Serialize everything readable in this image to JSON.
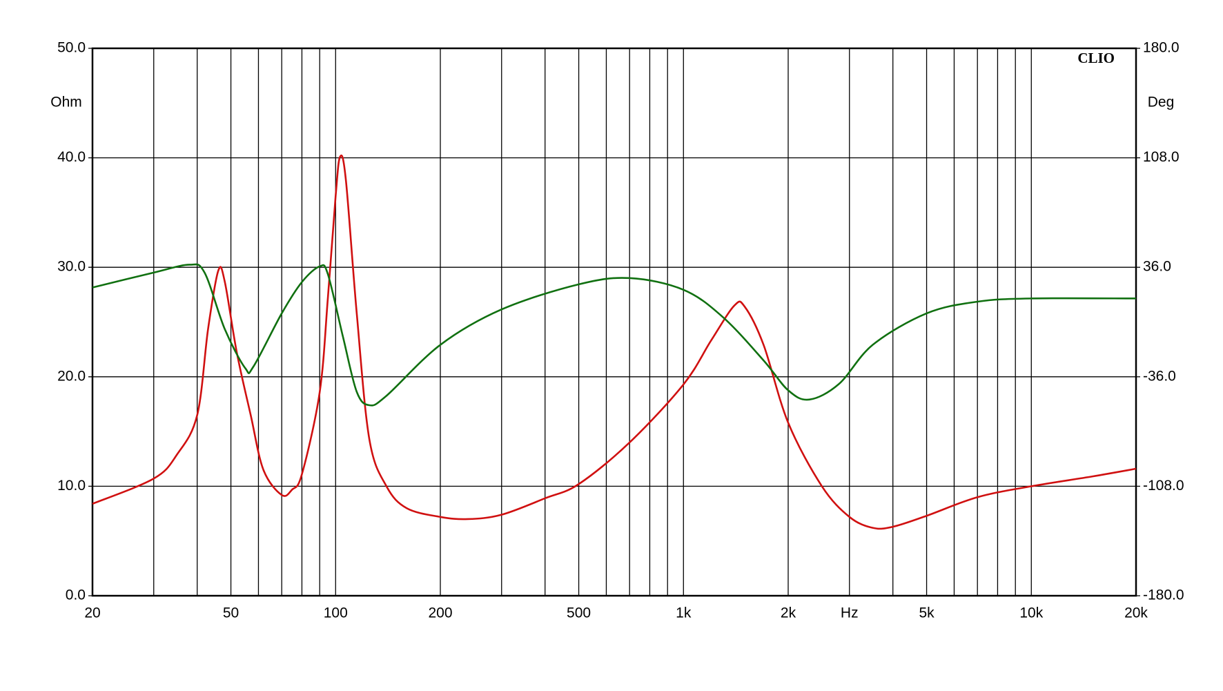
{
  "chart_data": {
    "type": "line",
    "annotation": "CLIO",
    "ylabel": "Ohm",
    "y2label": "Deg",
    "xscale": "log",
    "grid": true,
    "xlim": [
      20,
      20000
    ],
    "xticks": [
      20,
      50,
      100,
      200,
      500,
      {
        "value": 1000,
        "label": "1k"
      },
      {
        "value": 2000,
        "label": "2k"
      },
      {
        "value": 3000,
        "label": "Hz"
      },
      {
        "value": 5000,
        "label": "5k"
      },
      {
        "value": 10000,
        "label": "10k"
      },
      {
        "value": 20000,
        "label": "20k"
      }
    ],
    "xminor": [
      30,
      40,
      60,
      70,
      80,
      90,
      300,
      400,
      600,
      700,
      800,
      900,
      4000,
      6000,
      7000,
      8000,
      9000
    ],
    "ylim": [
      0,
      50
    ],
    "yticks": [
      {
        "value": 0,
        "label": "0.0"
      },
      {
        "value": 10,
        "label": "10.0"
      },
      {
        "value": 20,
        "label": "20.0"
      },
      {
        "value": 30,
        "label": "30.0"
      },
      {
        "value": 40,
        "label": "40.0"
      },
      {
        "value": 50,
        "label": "50.0"
      }
    ],
    "y2lim": [
      -180,
      180
    ],
    "y2ticks": [
      {
        "value": -180,
        "label": "-180.0"
      },
      {
        "value": -108,
        "label": "-108.0"
      },
      {
        "value": -36,
        "label": "-36.0"
      },
      {
        "value": 36,
        "label": "36.0"
      },
      {
        "value": 108,
        "label": "108.0"
      },
      {
        "value": 180,
        "label": "180.0"
      }
    ],
    "series": [
      {
        "color": "#d01010",
        "x": [
          20,
          30,
          35,
          40,
          43,
          46,
          48,
          52,
          57,
          62,
          70,
          75,
          80,
          90,
          95,
          100,
          103,
          107,
          115,
          125,
          140,
          160,
          200,
          240,
          300,
          400,
          500,
          700,
          1000,
          1200,
          1400,
          1500,
          1700,
          2000,
          2500,
          3000,
          3500,
          4000,
          5000,
          7000,
          10000,
          15000,
          20000
        ],
        "values": [
          8.4,
          10.7,
          12.9,
          16.5,
          24.4,
          29.7,
          28.7,
          22.2,
          16.5,
          11.5,
          9.2,
          9.7,
          11.1,
          18.6,
          27.2,
          36.5,
          40.1,
          38,
          25.8,
          14.3,
          10,
          8,
          7.2,
          7.0,
          7.4,
          8.9,
          10.2,
          14,
          19.3,
          23.3,
          26.5,
          26.4,
          22.9,
          15.8,
          10,
          7.2,
          6.2,
          6.3,
          7.3,
          9,
          10,
          10.9,
          11.6
        ]
      },
      {
        "color": "#107010",
        "axis": "y2",
        "x": [
          20,
          30,
          38,
          42,
          48,
          55,
          58,
          70,
          80,
          90,
          95,
          105,
          115,
          125,
          140,
          200,
          300,
          500,
          700,
          1000,
          1300,
          1700,
          2000,
          2300,
          2800,
          3500,
          5000,
          7000,
          10000,
          20000
        ],
        "values": [
          22.7,
          32.5,
          37.7,
          32.5,
          -4.6,
          -30.4,
          -29.4,
          5.7,
          26.3,
          36.6,
          31.5,
          -9.8,
          -45.9,
          -54.7,
          -48.5,
          -15,
          8.3,
          24.8,
          28.9,
          21.2,
          3.1,
          -25.3,
          -44.9,
          -51,
          -40.7,
          -15,
          5.7,
          13.4,
          15.5,
          15.5
        ]
      }
    ]
  }
}
